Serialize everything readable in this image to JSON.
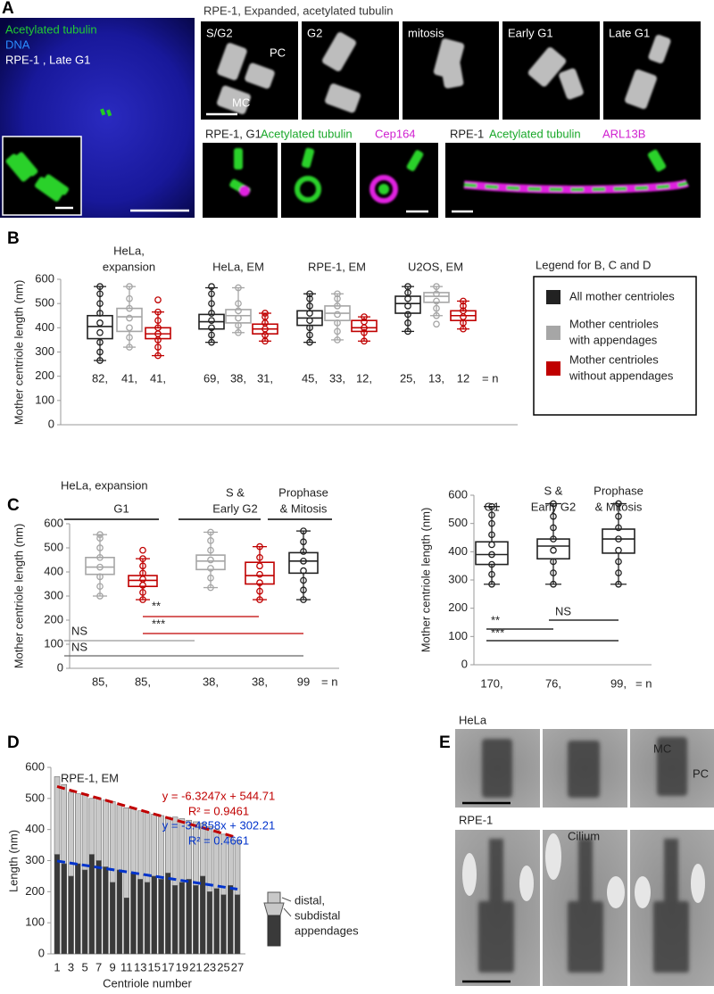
{
  "panel_labels": [
    "A",
    "B",
    "C",
    "D",
    "E"
  ],
  "panel_a": {
    "channels": [
      "Acetylated tubulin",
      "DNA"
    ],
    "channel_colors": [
      "#22cc33",
      "#2a8cff"
    ],
    "cell": "RPE-1 , Late G1",
    "expanded_title": "RPE-1, Expanded, acetylated tubulin",
    "stages": [
      "S/G2",
      "G2",
      "mitosis",
      "Early G1",
      "Late G1"
    ],
    "pc": "PC",
    "mc": "MC",
    "row2_left": [
      "RPE-1, G1",
      "Acetylated tubulin",
      "Cep164"
    ],
    "row2_right": [
      "RPE-1",
      "Acetylated tubulin",
      "ARL13B"
    ]
  },
  "legend": {
    "title": "Legend for B, C and D",
    "items": [
      {
        "color": "#222222",
        "lines": [
          "All mother centrioles"
        ]
      },
      {
        "color": "#a6a6a6",
        "lines": [
          "Mother centrioles",
          "with appendages"
        ]
      },
      {
        "color": "#c00000",
        "lines": [
          "Mother centrioles",
          "without appendages"
        ]
      }
    ]
  },
  "d_schematic": [
    "distal,",
    "subdistal",
    "appendages"
  ],
  "panel_e": {
    "hela": "HeLa",
    "mc": "MC",
    "pc": "PC",
    "rpe": "RPE-1",
    "cilium": "Cilium"
  },
  "chart_data": [
    {
      "type": "box",
      "y_label": "Mother centriole length (nm)",
      "ylim": [
        0,
        600
      ],
      "yticks": [
        0,
        100,
        200,
        300,
        400,
        500,
        600
      ],
      "n_suffix": "= n",
      "groups": [
        {
          "label": [
            "HeLa,",
            "expansion"
          ],
          "boxes": [
            {
              "color": "#222222",
              "stats": [
                265,
                355,
                405,
                450,
                570
              ],
              "points": [
                265,
                300,
                340,
                380,
                420,
                460,
                500,
                540,
                570
              ],
              "n": 82,
              "n_label": "82,"
            },
            {
              "color": "#a6a6a6",
              "stats": [
                320,
                385,
                445,
                480,
                570
              ],
              "points": [
                320,
                360,
                400,
                440,
                480,
                520,
                570
              ],
              "n": 41,
              "n_label": "41,"
            },
            {
              "color": "#c00000",
              "stats": [
                285,
                355,
                375,
                400,
                465
              ],
              "points": [
                285,
                320,
                350,
                375,
                400,
                430,
                465,
                515
              ],
              "n": 41,
              "n_label": "41,"
            }
          ]
        },
        {
          "label": [
            "HeLa, EM"
          ],
          "boxes": [
            {
              "color": "#222222",
              "stats": [
                340,
                395,
                425,
                455,
                565
              ],
              "points": [
                340,
                370,
                400,
                430,
                460,
                500,
                540,
                570
              ],
              "n": 69,
              "n_label": "69,"
            },
            {
              "color": "#a6a6a6",
              "stats": [
                380,
                420,
                450,
                475,
                565
              ],
              "points": [
                380,
                410,
                440,
                470,
                500,
                565
              ],
              "n": 38,
              "n_label": "38,"
            },
            {
              "color": "#c00000",
              "stats": [
                345,
                375,
                395,
                415,
                460
              ],
              "points": [
                345,
                370,
                395,
                420,
                445,
                460
              ],
              "n": 31,
              "n_label": "31,"
            }
          ]
        },
        {
          "label": [
            "RPE-1, EM"
          ],
          "boxes": [
            {
              "color": "#222222",
              "stats": [
                340,
                410,
                440,
                470,
                540
              ],
              "points": [
                340,
                370,
                400,
                430,
                460,
                490,
                520,
                540
              ],
              "n": 45,
              "n_label": "45,"
            },
            {
              "color": "#a6a6a6",
              "stats": [
                350,
                430,
                460,
                490,
                540
              ],
              "points": [
                350,
                385,
                420,
                455,
                490,
                520,
                540
              ],
              "n": 33,
              "n_label": "33,"
            },
            {
              "color": "#c00000",
              "stats": [
                345,
                385,
                400,
                430,
                445
              ],
              "points": [
                345,
                380,
                400,
                425,
                445
              ],
              "n": 12,
              "n_label": "12,"
            }
          ]
        },
        {
          "label": [
            "U2OS, EM"
          ],
          "boxes": [
            {
              "color": "#222222",
              "stats": [
                385,
                460,
                500,
                530,
                570
              ],
              "points": [
                385,
                420,
                455,
                490,
                520,
                545,
                570
              ],
              "n": 25,
              "n_label": "25,"
            },
            {
              "color": "#a6a6a6",
              "stats": [
                450,
                505,
                530,
                545,
                570
              ],
              "points": [
                415,
                450,
                480,
                510,
                540,
                570
              ],
              "n": 13,
              "n_label": "13,"
            },
            {
              "color": "#c00000",
              "stats": [
                395,
                430,
                450,
                470,
                510
              ],
              "points": [
                395,
                420,
                445,
                470,
                490,
                510
              ],
              "n": 12,
              "n_label": "12"
            }
          ]
        }
      ]
    },
    {
      "type": "box",
      "subtitle": "HeLa, expansion",
      "y_label": "Mother centriole length (nm)",
      "ylim": [
        0,
        600
      ],
      "yticks": [
        0,
        100,
        200,
        300,
        400,
        500,
        600
      ],
      "n_suffix": "= n",
      "groups": [
        {
          "label": [
            "G1"
          ],
          "boxes": [
            {
              "color": "#a6a6a6",
              "stats": [
                300,
                390,
                420,
                460,
                555
              ],
              "points": [
                300,
                340,
                380,
                420,
                460,
                500,
                540,
                555
              ],
              "n": 85,
              "n_label": "85,"
            },
            {
              "color": "#c00000",
              "stats": [
                285,
                340,
                365,
                385,
                455
              ],
              "points": [
                285,
                315,
                345,
                370,
                395,
                425,
                455,
                490
              ],
              "n": 85,
              "n_label": "85,"
            }
          ]
        },
        {
          "label": [
            "S &",
            "Early G2"
          ],
          "boxes": [
            {
              "color": "#a6a6a6",
              "stats": [
                335,
                410,
                445,
                470,
                565
              ],
              "points": [
                335,
                375,
                415,
                450,
                490,
                530,
                565
              ],
              "n": 38,
              "n_label": "38,"
            },
            {
              "color": "#c00000",
              "stats": [
                285,
                350,
                385,
                440,
                505
              ],
              "points": [
                285,
                320,
                355,
                390,
                425,
                460,
                505
              ],
              "n": 38,
              "n_label": "38,"
            }
          ]
        },
        {
          "label": [
            "Prophase",
            "& Mitosis"
          ],
          "boxes": [
            {
              "color": "#222222",
              "stats": [
                285,
                395,
                445,
                480,
                570
              ],
              "points": [
                285,
                325,
                365,
                405,
                445,
                485,
                525,
                570
              ],
              "n": 99,
              "n_label": "99"
            }
          ]
        }
      ],
      "significance": [
        {
          "label": "**",
          "color": "#c00000"
        },
        {
          "label": "***",
          "color": "#c00000"
        },
        {
          "label": "NS",
          "color": "#999999"
        },
        {
          "label": "NS",
          "color": "#666666"
        }
      ]
    },
    {
      "type": "box",
      "y_label": "Mother centriole length (nm)",
      "ylim": [
        0,
        600
      ],
      "yticks": [
        0,
        100,
        200,
        300,
        400,
        500,
        600
      ],
      "n_suffix": "= n",
      "groups": [
        {
          "label": [
            "G1"
          ],
          "boxes": [
            {
              "color": "#222222",
              "stats": [
                285,
                355,
                390,
                435,
                560
              ],
              "points": [
                285,
                320,
                355,
                390,
                425,
                460,
                500,
                530,
                560
              ],
              "n": 170,
              "n_label": "170,"
            }
          ]
        },
        {
          "label": [
            "S &",
            "Early G2"
          ],
          "boxes": [
            {
              "color": "#222222",
              "stats": [
                285,
                375,
                420,
                445,
                570
              ],
              "points": [
                285,
                325,
                365,
                405,
                445,
                485,
                525,
                570
              ],
              "n": 76,
              "n_label": "76,"
            }
          ]
        },
        {
          "label": [
            "Prophase",
            "& Mitosis"
          ],
          "boxes": [
            {
              "color": "#222222",
              "stats": [
                285,
                395,
                445,
                480,
                570
              ],
              "points": [
                285,
                325,
                365,
                405,
                445,
                485,
                525,
                570
              ],
              "n": 99,
              "n_label": "99,"
            }
          ]
        }
      ],
      "significance": [
        {
          "label": "**",
          "color": "#000000"
        },
        {
          "label": "NS",
          "color": "#000000"
        },
        {
          "label": "***",
          "color": "#000000"
        }
      ]
    },
    {
      "type": "stacked_bar",
      "subtitle": "RPE-1, EM",
      "x_label": "Centriole number",
      "y_label": "Length (nm)",
      "ylim": [
        0,
        600
      ],
      "yticks": [
        0,
        100,
        200,
        300,
        400,
        500,
        600
      ],
      "categories": [
        1,
        null,
        3,
        null,
        5,
        null,
        7,
        null,
        9,
        null,
        11,
        null,
        13,
        null,
        15,
        null,
        17,
        null,
        19,
        null,
        21,
        null,
        23,
        null,
        25,
        null,
        27
      ],
      "series": [
        {
          "color": "#3a3a3a",
          "values": [
            320,
            290,
            250,
            290,
            270,
            320,
            300,
            280,
            230,
            270,
            180,
            260,
            240,
            230,
            250,
            240,
            260,
            220,
            230,
            240,
            220,
            250,
            200,
            210,
            190,
            220,
            190
          ]
        },
        {
          "color": "#c8c8c8",
          "values": [
            250,
            255,
            270,
            225,
            245,
            180,
            200,
            215,
            260,
            210,
            290,
            210,
            220,
            225,
            200,
            205,
            180,
            220,
            205,
            190,
            205,
            170,
            210,
            190,
            195,
            155,
            175
          ]
        }
      ],
      "trendlines": [
        {
          "color": "#c00000",
          "slope": -6.3247,
          "intercept": 544.71,
          "r2": 0.9461,
          "equation": "y = -6.3247x + 544.71",
          "r2_label": "R² = 0.9461"
        },
        {
          "color": "#0033cc",
          "slope": -3.4858,
          "intercept": 302.21,
          "r2": 0.4661,
          "equation": "y = -3.4858x + 302.21",
          "r2_label": "R² = 0.4661"
        }
      ]
    }
  ]
}
